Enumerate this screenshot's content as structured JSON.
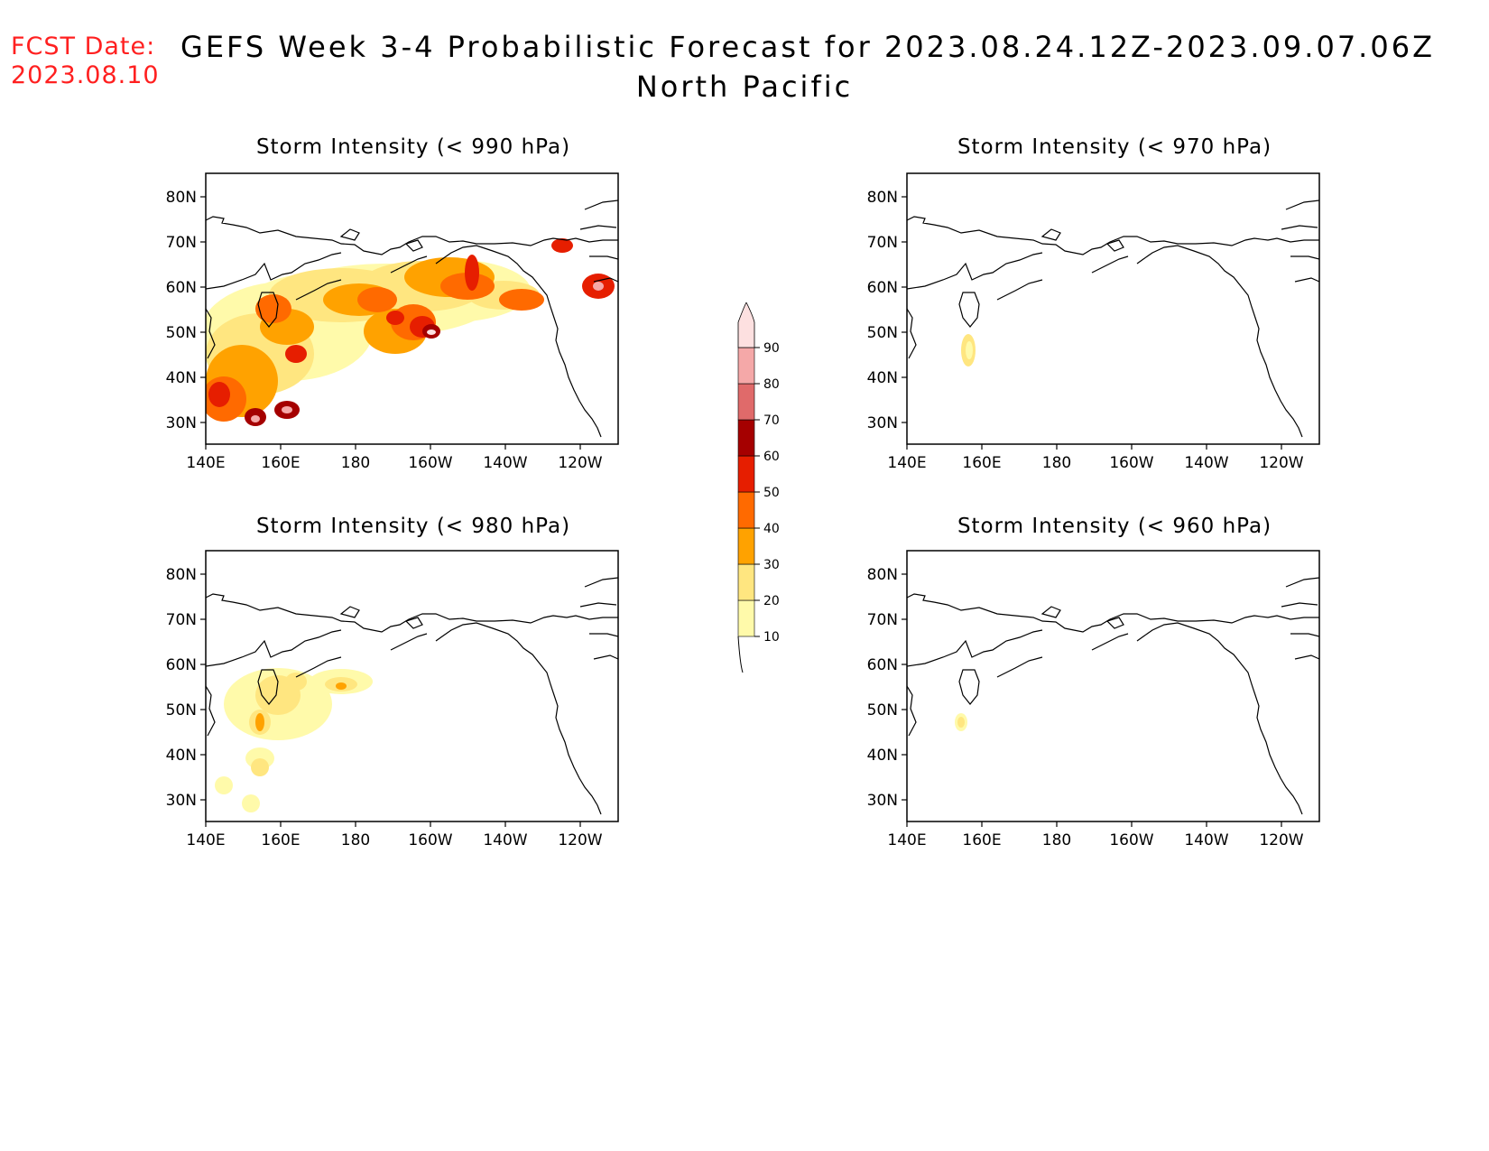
{
  "header": {
    "fcst_label": "FCST Date:",
    "fcst_date": "2023.08.10",
    "title": "GEFS Week 3-4 Probabilistic Forecast for 2023.08.24.12Z-2023.09.07.06Z",
    "subtitle": "North Pacific"
  },
  "panels": [
    {
      "title": "Storm Intensity (< 990 hPa)"
    },
    {
      "title": "Storm Intensity (< 970 hPa)"
    },
    {
      "title": "Storm Intensity (< 980 hPa)"
    },
    {
      "title": "Storm Intensity (< 960 hPa)"
    }
  ],
  "axes": {
    "lat_ticks": [
      "80N",
      "70N",
      "60N",
      "50N",
      "40N",
      "30N"
    ],
    "lon_ticks": [
      "140E",
      "160E",
      "180",
      "160W",
      "140W",
      "120W"
    ]
  },
  "colorbar": {
    "levels": [
      "10",
      "20",
      "30",
      "40",
      "50",
      "60",
      "70",
      "80",
      "90"
    ],
    "colors": [
      "#fffaaa",
      "#ffe680",
      "#ffa200",
      "#ff6a00",
      "#e61e00",
      "#a50000",
      "#e06a6a",
      "#f5a8a8",
      "#fde0e0"
    ]
  }
}
